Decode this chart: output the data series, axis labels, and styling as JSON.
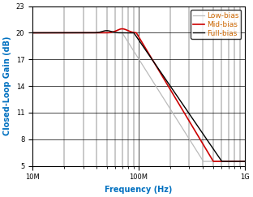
{
  "title": "",
  "xlabel": "Frequency (Hz)",
  "ylabel": "Closed-Loop Gain (dB)",
  "xlim": [
    10000000.0,
    1000000000.0
  ],
  "ylim": [
    5,
    23
  ],
  "yticks": [
    5,
    8,
    11,
    14,
    17,
    20,
    23
  ],
  "legend_labels": [
    "Full-bias",
    "Mid-bias",
    "Low-bias"
  ],
  "legend_colors": [
    "#000000",
    "#cc0000",
    "#bbbbbb"
  ],
  "label_color": "#0070c0",
  "grid_color": "#000000",
  "bg_color": "#ffffff",
  "font_size_label": 7,
  "font_size_tick": 6,
  "font_size_legend": 6.5
}
